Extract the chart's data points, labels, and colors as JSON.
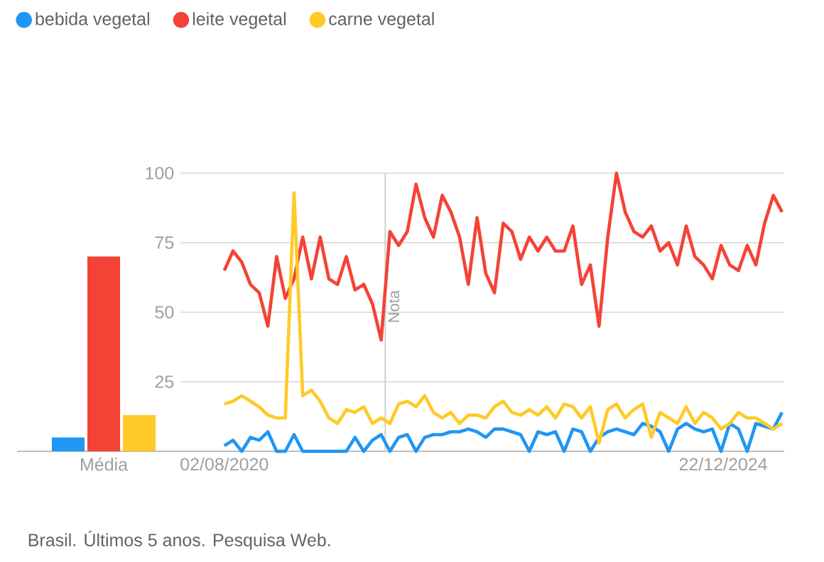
{
  "chart_data": [
    {
      "type": "bar",
      "categories": [
        "Média"
      ],
      "ylim": [
        0,
        100
      ],
      "tick_labels": "x",
      "series": [
        {
          "color": "#2196f3",
          "values": [
            5
          ]
        },
        {
          "color": "#f44336",
          "values": [
            70
          ]
        },
        {
          "color": "#ffca28",
          "values": [
            13
          ]
        }
      ]
    },
    {
      "type": "line",
      "legend": "top",
      "grid": "y",
      "xlim": [
        "2020-03-14",
        "2025-07-06"
      ],
      "ylim": [
        0,
        100
      ],
      "xticks": [
        {
          "value": "2020-08-02",
          "label": "02/08/2020"
        },
        {
          "value": "2024-12-22",
          "label": "22/12/2024"
        }
      ],
      "yticks": [
        25,
        50,
        75,
        100
      ],
      "ref_lines": [
        {
          "axis": "x",
          "value": "2022-01-01",
          "label": "Nota",
          "color": "#d0d0d0"
        }
      ],
      "annotations": [
        "Brasil. Últimos 5 anos. Pesquisa Web."
      ],
      "x": [
        "2020-08-02",
        "2020-08-30",
        "2020-09-27",
        "2020-10-25",
        "2020-11-22",
        "2020-12-20",
        "2021-01-17",
        "2021-02-14",
        "2021-03-14",
        "2021-04-11",
        "2021-05-09",
        "2021-06-06",
        "2021-07-04",
        "2021-08-01",
        "2021-08-29",
        "2021-09-26",
        "2021-10-24",
        "2021-11-21",
        "2021-12-19",
        "2022-01-16",
        "2022-02-13",
        "2022-03-13",
        "2022-04-10",
        "2022-05-08",
        "2022-06-05",
        "2022-07-03",
        "2022-07-31",
        "2022-08-28",
        "2022-09-25",
        "2022-10-23",
        "2022-11-20",
        "2022-12-18",
        "2023-01-15",
        "2023-02-12",
        "2023-03-12",
        "2023-04-09",
        "2023-05-07",
        "2023-06-04",
        "2023-07-02",
        "2023-07-30",
        "2023-08-27",
        "2023-09-24",
        "2023-10-22",
        "2023-11-19",
        "2023-12-17",
        "2024-01-14",
        "2024-02-11",
        "2024-03-10",
        "2024-04-07",
        "2024-05-05",
        "2024-06-02",
        "2024-06-30",
        "2024-07-28",
        "2024-08-25",
        "2024-09-22",
        "2024-10-20",
        "2024-11-17",
        "2024-12-15",
        "2025-01-12",
        "2025-02-09",
        "2025-03-09",
        "2025-04-06",
        "2025-05-04",
        "2025-06-01",
        "2025-06-29"
      ],
      "series": [
        {
          "name": "bebida vegetal",
          "color": "#2196f3",
          "values": [
            2,
            4,
            0,
            5,
            4,
            7,
            0,
            0,
            6,
            0,
            0,
            0,
            0,
            0,
            0,
            5,
            0,
            4,
            6,
            0,
            5,
            6,
            0,
            5,
            6,
            6,
            7,
            7,
            8,
            7,
            5,
            8,
            8,
            7,
            6,
            0,
            7,
            6,
            7,
            0,
            8,
            7,
            0,
            5,
            7,
            8,
            7,
            6,
            10,
            9,
            7,
            0,
            8,
            10,
            8,
            7,
            8,
            0,
            10,
            8,
            0,
            10,
            9,
            8,
            14
          ]
        },
        {
          "name": "leite vegetal",
          "color": "#f44336",
          "values": [
            65,
            72,
            68,
            60,
            57,
            45,
            70,
            55,
            62,
            77,
            62,
            77,
            62,
            60,
            70,
            58,
            60,
            53,
            40,
            79,
            74,
            79,
            96,
            84,
            77,
            92,
            86,
            77,
            60,
            84,
            64,
            57,
            82,
            79,
            69,
            77,
            72,
            77,
            72,
            72,
            81,
            60,
            67,
            45,
            77,
            100,
            86,
            79,
            77,
            81,
            72,
            75,
            67,
            81,
            70,
            67,
            62,
            74,
            67,
            65,
            74,
            67,
            82,
            92,
            86
          ]
        },
        {
          "name": "carne vegetal",
          "color": "#ffca28",
          "values": [
            17,
            18,
            20,
            18,
            16,
            13,
            12,
            12,
            93,
            20,
            22,
            18,
            12,
            10,
            15,
            14,
            16,
            10,
            12,
            10,
            17,
            18,
            16,
            20,
            14,
            12,
            14,
            10,
            13,
            13,
            12,
            16,
            18,
            14,
            13,
            15,
            13,
            16,
            12,
            17,
            16,
            12,
            16,
            3,
            15,
            17,
            12,
            15,
            17,
            5,
            14,
            12,
            10,
            16,
            10,
            14,
            12,
            8,
            10,
            14,
            12,
            12,
            10,
            8,
            10
          ]
        }
      ]
    }
  ]
}
